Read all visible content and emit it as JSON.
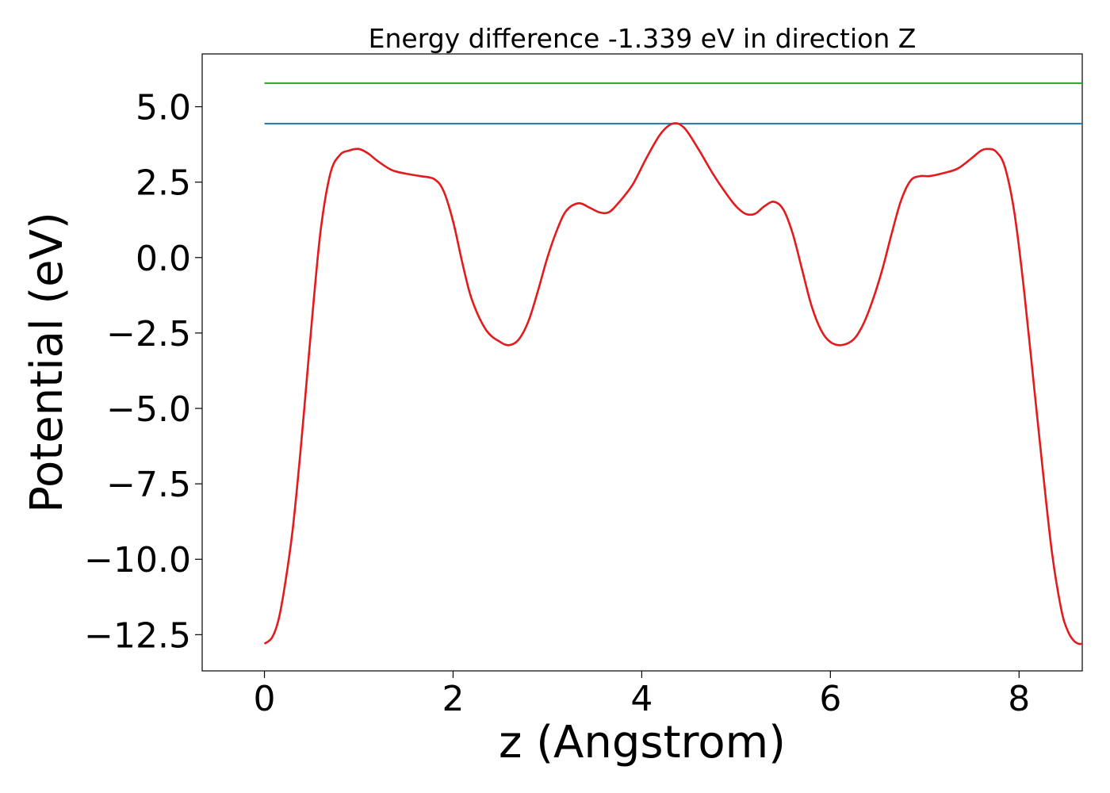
{
  "chart_data": {
    "type": "line",
    "title": "Energy difference -1.339 eV in direction Z",
    "xlabel": "z (Angstrom)",
    "ylabel": "Potential (eV)",
    "xlim": [
      -0.66,
      8.67
    ],
    "ylim": [
      -13.7,
      6.75
    ],
    "xticks": [
      {
        "value": 0,
        "label": "0"
      },
      {
        "value": 2,
        "label": "2"
      },
      {
        "value": 4,
        "label": "4"
      },
      {
        "value": 6,
        "label": "6"
      },
      {
        "value": 8,
        "label": "8"
      }
    ],
    "yticks": [
      {
        "value": 5.0,
        "label": "5.0"
      },
      {
        "value": 2.5,
        "label": "2.5"
      },
      {
        "value": 0.0,
        "label": "0.0"
      },
      {
        "value": -2.5,
        "label": "−2.5"
      },
      {
        "value": -5.0,
        "label": "−5.0"
      },
      {
        "value": -7.5,
        "label": "−7.5"
      },
      {
        "value": -10.0,
        "label": "−10.0"
      },
      {
        "value": -12.5,
        "label": "−12.5"
      }
    ],
    "grid": false,
    "legend": "none",
    "series": [
      {
        "color": "#2ca02c",
        "kind": "hline",
        "x": [
          0,
          8.67
        ],
        "y": [
          5.78,
          5.78
        ]
      },
      {
        "color": "#1f77b4",
        "kind": "hline",
        "x": [
          0,
          8.67
        ],
        "y": [
          4.44,
          4.44
        ]
      },
      {
        "color": "#e41a1c",
        "kind": "curve",
        "x": [
          0.0,
          0.08,
          0.15,
          0.22,
          0.3,
          0.38,
          0.45,
          0.52,
          0.6,
          0.7,
          0.8,
          0.9,
          1.0,
          1.1,
          1.2,
          1.35,
          1.5,
          1.65,
          1.8,
          1.9,
          2.0,
          2.1,
          2.2,
          2.35,
          2.5,
          2.6,
          2.7,
          2.8,
          2.9,
          3.0,
          3.1,
          3.2,
          3.33,
          3.45,
          3.55,
          3.65,
          3.75,
          3.9,
          4.05,
          4.2,
          4.33,
          4.45,
          4.6,
          4.75,
          4.9,
          5.0,
          5.1,
          5.2,
          5.3,
          5.4,
          5.5,
          5.6,
          5.7,
          5.8,
          5.9,
          6.0,
          6.12,
          6.25,
          6.35,
          6.45,
          6.55,
          6.65,
          6.75,
          6.85,
          6.95,
          7.05,
          7.2,
          7.35,
          7.5,
          7.6,
          7.68,
          7.76,
          7.85,
          7.95,
          8.05,
          8.15,
          8.25,
          8.35,
          8.45,
          8.52,
          8.58,
          8.63,
          8.67
        ],
        "y": [
          -12.8,
          -12.6,
          -12.0,
          -10.8,
          -9.0,
          -6.5,
          -4.0,
          -1.5,
          1.0,
          2.8,
          3.4,
          3.55,
          3.6,
          3.45,
          3.2,
          2.9,
          2.78,
          2.7,
          2.6,
          2.2,
          1.2,
          -0.2,
          -1.4,
          -2.4,
          -2.8,
          -2.9,
          -2.7,
          -2.1,
          -1.1,
          0.0,
          0.9,
          1.55,
          1.8,
          1.65,
          1.5,
          1.5,
          1.8,
          2.4,
          3.3,
          4.1,
          4.44,
          4.3,
          3.6,
          2.8,
          2.1,
          1.7,
          1.45,
          1.45,
          1.7,
          1.85,
          1.6,
          0.8,
          -0.4,
          -1.6,
          -2.4,
          -2.8,
          -2.9,
          -2.7,
          -2.2,
          -1.4,
          -0.4,
          0.8,
          1.9,
          2.55,
          2.7,
          2.7,
          2.8,
          2.95,
          3.3,
          3.55,
          3.6,
          3.5,
          3.0,
          1.5,
          -1.0,
          -4.0,
          -7.0,
          -9.8,
          -11.7,
          -12.4,
          -12.7,
          -12.8,
          -12.8
        ]
      }
    ]
  }
}
